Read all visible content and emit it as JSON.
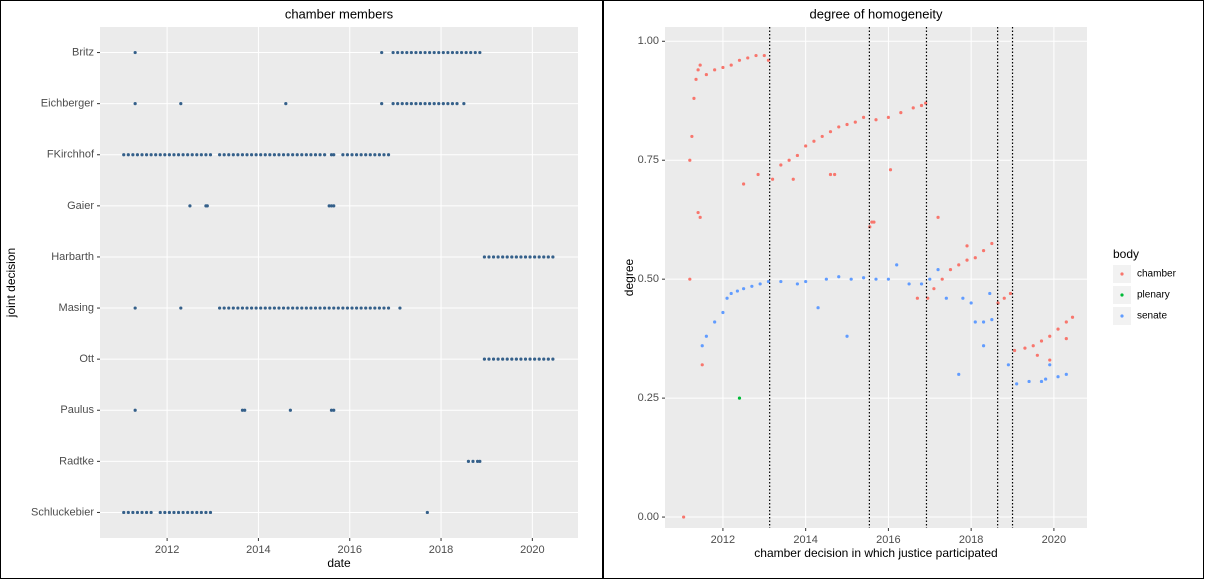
{
  "chart_data": [
    {
      "type": "strip",
      "title": "chamber members",
      "x_label": "date",
      "y_label": "joint decision",
      "color": "#35608a",
      "xlim": [
        2010.53,
        2021.0
      ],
      "xticks": [
        2012,
        2014,
        2016,
        2018,
        2020
      ],
      "grid": true,
      "rows": [
        {
          "name": "Britz",
          "dates": [
            2011.3,
            2016.7,
            2016.95,
            2017.05,
            2017.15,
            2017.25,
            2017.35,
            2017.45,
            2017.55,
            2017.65,
            2017.75,
            2017.85,
            2017.95,
            2018.05,
            2018.15,
            2018.25,
            2018.35,
            2018.45,
            2018.55,
            2018.65,
            2018.75,
            2018.85
          ]
        },
        {
          "name": "Eichberger",
          "dates": [
            2011.3,
            2012.3,
            2014.6,
            2016.7,
            2016.95,
            2017.05,
            2017.15,
            2017.25,
            2017.35,
            2017.45,
            2017.55,
            2017.65,
            2017.75,
            2017.85,
            2017.95,
            2018.05,
            2018.15,
            2018.25,
            2018.35,
            2018.5
          ]
        },
        {
          "name": "FKirchhof",
          "dates": [
            2011.05,
            2011.15,
            2011.25,
            2011.35,
            2011.45,
            2011.55,
            2011.65,
            2011.75,
            2011.85,
            2011.95,
            2012.05,
            2012.15,
            2012.25,
            2012.35,
            2012.45,
            2012.55,
            2012.65,
            2012.75,
            2012.85,
            2012.95,
            2013.15,
            2013.25,
            2013.35,
            2013.45,
            2013.55,
            2013.65,
            2013.75,
            2013.85,
            2013.95,
            2014.05,
            2014.15,
            2014.25,
            2014.35,
            2014.45,
            2014.55,
            2014.65,
            2014.75,
            2014.85,
            2014.95,
            2015.05,
            2015.15,
            2015.25,
            2015.35,
            2015.45,
            2015.6,
            2015.65,
            2015.85,
            2015.95,
            2016.05,
            2016.15,
            2016.25,
            2016.35,
            2016.45,
            2016.55,
            2016.65,
            2016.75,
            2016.85
          ]
        },
        {
          "name": "Gaier",
          "dates": [
            2012.5,
            2012.85,
            2012.88,
            2015.55,
            2015.6,
            2015.65
          ]
        },
        {
          "name": "Harbarth",
          "dates": [
            2018.95,
            2019.05,
            2019.15,
            2019.25,
            2019.35,
            2019.45,
            2019.55,
            2019.65,
            2019.75,
            2019.85,
            2019.95,
            2020.05,
            2020.15,
            2020.25,
            2020.35,
            2020.45
          ]
        },
        {
          "name": "Masing",
          "dates": [
            2011.3,
            2012.3,
            2013.15,
            2013.25,
            2013.35,
            2013.45,
            2013.55,
            2013.65,
            2013.75,
            2013.85,
            2013.95,
            2014.05,
            2014.15,
            2014.25,
            2014.35,
            2014.45,
            2014.55,
            2014.65,
            2014.75,
            2014.85,
            2014.95,
            2015.05,
            2015.15,
            2015.25,
            2015.35,
            2015.45,
            2015.55,
            2015.65,
            2015.75,
            2015.85,
            2015.95,
            2016.05,
            2016.15,
            2016.25,
            2016.35,
            2016.45,
            2016.55,
            2016.65,
            2016.75,
            2016.85,
            2017.1
          ]
        },
        {
          "name": "Ott",
          "dates": [
            2018.95,
            2019.05,
            2019.15,
            2019.25,
            2019.35,
            2019.45,
            2019.55,
            2019.65,
            2019.75,
            2019.85,
            2019.95,
            2020.05,
            2020.15,
            2020.25,
            2020.35,
            2020.45
          ]
        },
        {
          "name": "Paulus",
          "dates": [
            2011.3,
            2013.65,
            2013.7,
            2014.7,
            2015.6,
            2015.65
          ]
        },
        {
          "name": "Radtke",
          "dates": [
            2018.6,
            2018.7,
            2018.8,
            2018.85
          ]
        },
        {
          "name": "Schluckebier",
          "dates": [
            2011.05,
            2011.15,
            2011.25,
            2011.35,
            2011.45,
            2011.55,
            2011.65,
            2011.85,
            2011.95,
            2012.05,
            2012.15,
            2012.25,
            2012.35,
            2012.45,
            2012.55,
            2012.65,
            2012.75,
            2012.85,
            2012.95,
            2017.7
          ]
        }
      ]
    },
    {
      "type": "scatter",
      "title": "degree of homogeneity",
      "x_label": "chamber decision in which justice participated",
      "y_label": "degree",
      "xlim": [
        2010.6,
        2020.8
      ],
      "ylim": [
        -0.023,
        1.03
      ],
      "xticks": [
        2012,
        2014,
        2016,
        2018,
        2020
      ],
      "yticks": [
        {
          "value": 0,
          "label": "0.00"
        },
        {
          "value": 0.25,
          "label": "0.25"
        },
        {
          "value": 0.5,
          "label": "0.50"
        },
        {
          "value": 0.75,
          "label": "0.75"
        },
        {
          "value": 1,
          "label": "1.00"
        }
      ],
      "grid": true,
      "legend_title": "body",
      "legend": "right",
      "vlines": [
        2013.13,
        2015.54,
        2016.92,
        2018.64,
        2019.0
      ],
      "series": [
        {
          "name": "chamber",
          "color": "#f8766d",
          "x": [
            2011.05,
            2011.2,
            2011.2,
            2011.25,
            2011.3,
            2011.35,
            2011.4,
            2011.45,
            2011.4,
            2011.45,
            2011.5,
            2011.6,
            2011.8,
            2012.0,
            2012.2,
            2012.4,
            2012.6,
            2012.8,
            2013.0,
            2012.5,
            2012.85,
            2013.1,
            2013.2,
            2013.4,
            2013.6,
            2013.8,
            2014.0,
            2014.2,
            2014.4,
            2014.6,
            2014.8,
            2015.0,
            2015.2,
            2015.4,
            2013.7,
            2014.6,
            2014.7,
            2015.55,
            2015.6,
            2015.65,
            2015.7,
            2016.0,
            2016.3,
            2016.6,
            2016.8,
            2016.9,
            2016.05,
            2016.7,
            2016.95,
            2017.1,
            2017.3,
            2017.5,
            2017.7,
            2017.9,
            2018.1,
            2018.3,
            2018.5,
            2017.2,
            2017.9,
            2018.65,
            2018.8,
            2018.95,
            2019.05,
            2019.3,
            2019.5,
            2019.7,
            2019.9,
            2020.1,
            2020.3,
            2020.45,
            2019.6,
            2019.9,
            2020.3
          ],
          "values": [
            0.0,
            0.5,
            0.75,
            0.8,
            0.88,
            0.92,
            0.94,
            0.95,
            0.64,
            0.63,
            0.32,
            0.93,
            0.94,
            0.945,
            0.95,
            0.96,
            0.965,
            0.97,
            0.97,
            0.7,
            0.72,
            0.96,
            0.71,
            0.74,
            0.75,
            0.76,
            0.78,
            0.79,
            0.8,
            0.81,
            0.82,
            0.825,
            0.83,
            0.84,
            0.71,
            0.72,
            0.72,
            0.61,
            0.62,
            0.62,
            0.835,
            0.84,
            0.85,
            0.86,
            0.865,
            0.87,
            0.73,
            0.46,
            0.46,
            0.48,
            0.5,
            0.52,
            0.53,
            0.54,
            0.545,
            0.56,
            0.575,
            0.63,
            0.57,
            0.45,
            0.46,
            0.47,
            0.35,
            0.355,
            0.36,
            0.37,
            0.38,
            0.395,
            0.41,
            0.42,
            0.34,
            0.33,
            0.375
          ]
        },
        {
          "name": "plenary",
          "color": "#00ba38",
          "x": [
            2012.4
          ],
          "values": [
            0.25
          ]
        },
        {
          "name": "senate",
          "color": "#619cff",
          "x": [
            2011.5,
            2011.6,
            2011.8,
            2012.0,
            2012.1,
            2012.2,
            2012.35,
            2012.5,
            2012.7,
            2012.9,
            2013.1,
            2013.4,
            2013.8,
            2014.0,
            2014.3,
            2014.5,
            2014.8,
            2015.0,
            2015.1,
            2015.4,
            2015.7,
            2016.0,
            2016.2,
            2016.5,
            2016.8,
            2017.0,
            2017.2,
            2017.4,
            2017.7,
            2017.8,
            2018.0,
            2018.1,
            2018.3,
            2018.5,
            2018.3,
            2018.45,
            2018.9,
            2019.1,
            2019.4,
            2019.7,
            2019.8,
            2019.9,
            2020.1,
            2020.3
          ],
          "values": [
            0.36,
            0.38,
            0.41,
            0.43,
            0.46,
            0.47,
            0.475,
            0.48,
            0.485,
            0.49,
            0.495,
            0.495,
            0.49,
            0.495,
            0.44,
            0.5,
            0.505,
            0.38,
            0.5,
            0.503,
            0.5,
            0.5,
            0.53,
            0.49,
            0.49,
            0.5,
            0.52,
            0.46,
            0.3,
            0.46,
            0.45,
            0.41,
            0.41,
            0.415,
            0.36,
            0.47,
            0.32,
            0.28,
            0.285,
            0.285,
            0.29,
            0.32,
            0.295,
            0.3
          ]
        }
      ]
    }
  ]
}
